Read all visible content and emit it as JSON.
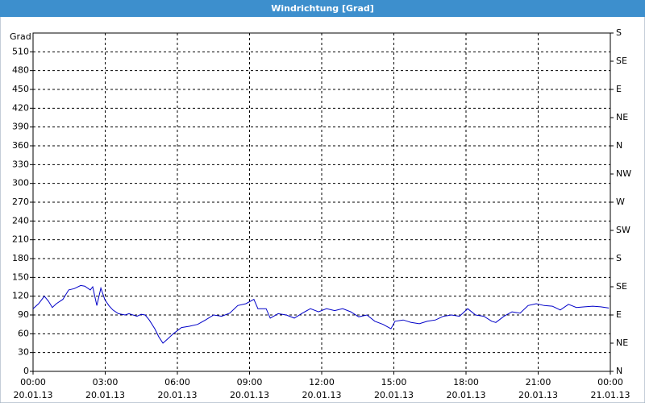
{
  "chart_data": {
    "type": "line",
    "title": "Windrichtung [Grad]",
    "y_label": "Grad",
    "xlim": [
      0,
      24
    ],
    "xticks": [
      {
        "value": 0,
        "label": "00:00",
        "date": "20.01.13"
      },
      {
        "value": 3,
        "label": "03:00",
        "date": "20.01.13"
      },
      {
        "value": 6,
        "label": "06:00",
        "date": "20.01.13"
      },
      {
        "value": 9,
        "label": "09:00",
        "date": "20.01.13"
      },
      {
        "value": 12,
        "label": "12:00",
        "date": "20.01.13"
      },
      {
        "value": 15,
        "label": "15:00",
        "date": "20.01.13"
      },
      {
        "value": 18,
        "label": "18:00",
        "date": "20.01.13"
      },
      {
        "value": 21,
        "label": "21:00",
        "date": "20.01.13"
      },
      {
        "value": 24,
        "label": "00:00",
        "date": "21.01.13"
      }
    ],
    "ylim": [
      0,
      540
    ],
    "yticks": [
      0,
      30,
      60,
      90,
      120,
      150,
      180,
      210,
      240,
      270,
      300,
      330,
      360,
      390,
      420,
      450,
      480,
      510
    ],
    "y2lim": [
      0,
      540
    ],
    "y2ticks": [
      {
        "value": 0,
        "label": "N"
      },
      {
        "value": 45,
        "label": "NE"
      },
      {
        "value": 90,
        "label": "E"
      },
      {
        "value": 135,
        "label": "SE"
      },
      {
        "value": 180,
        "label": "S"
      },
      {
        "value": 225,
        "label": "SW"
      },
      {
        "value": 270,
        "label": "W"
      },
      {
        "value": 315,
        "label": "NW"
      },
      {
        "value": 360,
        "label": "N"
      },
      {
        "value": 405,
        "label": "NE"
      },
      {
        "value": 450,
        "label": "E"
      },
      {
        "value": 495,
        "label": "SE"
      },
      {
        "value": 540,
        "label": "S"
      }
    ],
    "grid": true,
    "x": [
      0,
      0.23,
      0.47,
      0.64,
      0.8,
      0.97,
      1.24,
      1.48,
      1.71,
      1.98,
      2.15,
      2.38,
      2.48,
      2.65,
      2.82,
      2.98,
      3.15,
      3.32,
      3.55,
      3.82,
      3.99,
      4.32,
      4.49,
      4.66,
      4.83,
      5.06,
      5.23,
      5.4,
      5.6,
      5.83,
      6.17,
      6.5,
      6.84,
      7.17,
      7.51,
      7.84,
      8.18,
      8.51,
      8.85,
      9.18,
      9.35,
      9.69,
      9.86,
      10.19,
      10.53,
      10.86,
      11.2,
      11.53,
      11.87,
      12.2,
      12.54,
      12.87,
      13.21,
      13.54,
      13.88,
      14.21,
      14.55,
      14.88,
      15.05,
      15.39,
      15.72,
      16.06,
      16.39,
      16.73,
      17.06,
      17.4,
      17.73,
      18.07,
      18.4,
      18.74,
      19.07,
      19.24,
      19.58,
      19.91,
      20.25,
      20.58,
      20.92,
      21.25,
      21.59,
      21.92,
      22.26,
      22.59,
      22.93,
      23.27,
      23.6,
      23.94
    ],
    "series": [
      {
        "color": "#0000c8",
        "values": [
          100,
          108,
          120,
          112,
          102,
          108,
          115,
          130,
          132,
          137,
          136,
          130,
          135,
          105,
          133,
          115,
          105,
          98,
          92,
          90,
          92,
          88,
          91,
          90,
          82,
          68,
          55,
          45,
          52,
          60,
          70,
          72,
          75,
          82,
          90,
          88,
          93,
          105,
          108,
          115,
          100,
          100,
          85,
          92,
          90,
          85,
          93,
          100,
          95,
          100,
          97,
          100,
          95,
          87,
          90,
          80,
          75,
          68,
          80,
          82,
          78,
          76,
          80,
          82,
          88,
          90,
          88,
          100,
          90,
          88,
          80,
          78,
          88,
          95,
          93,
          105,
          108,
          105,
          104,
          98,
          107,
          102,
          103,
          104,
          103,
          101
        ]
      }
    ]
  }
}
